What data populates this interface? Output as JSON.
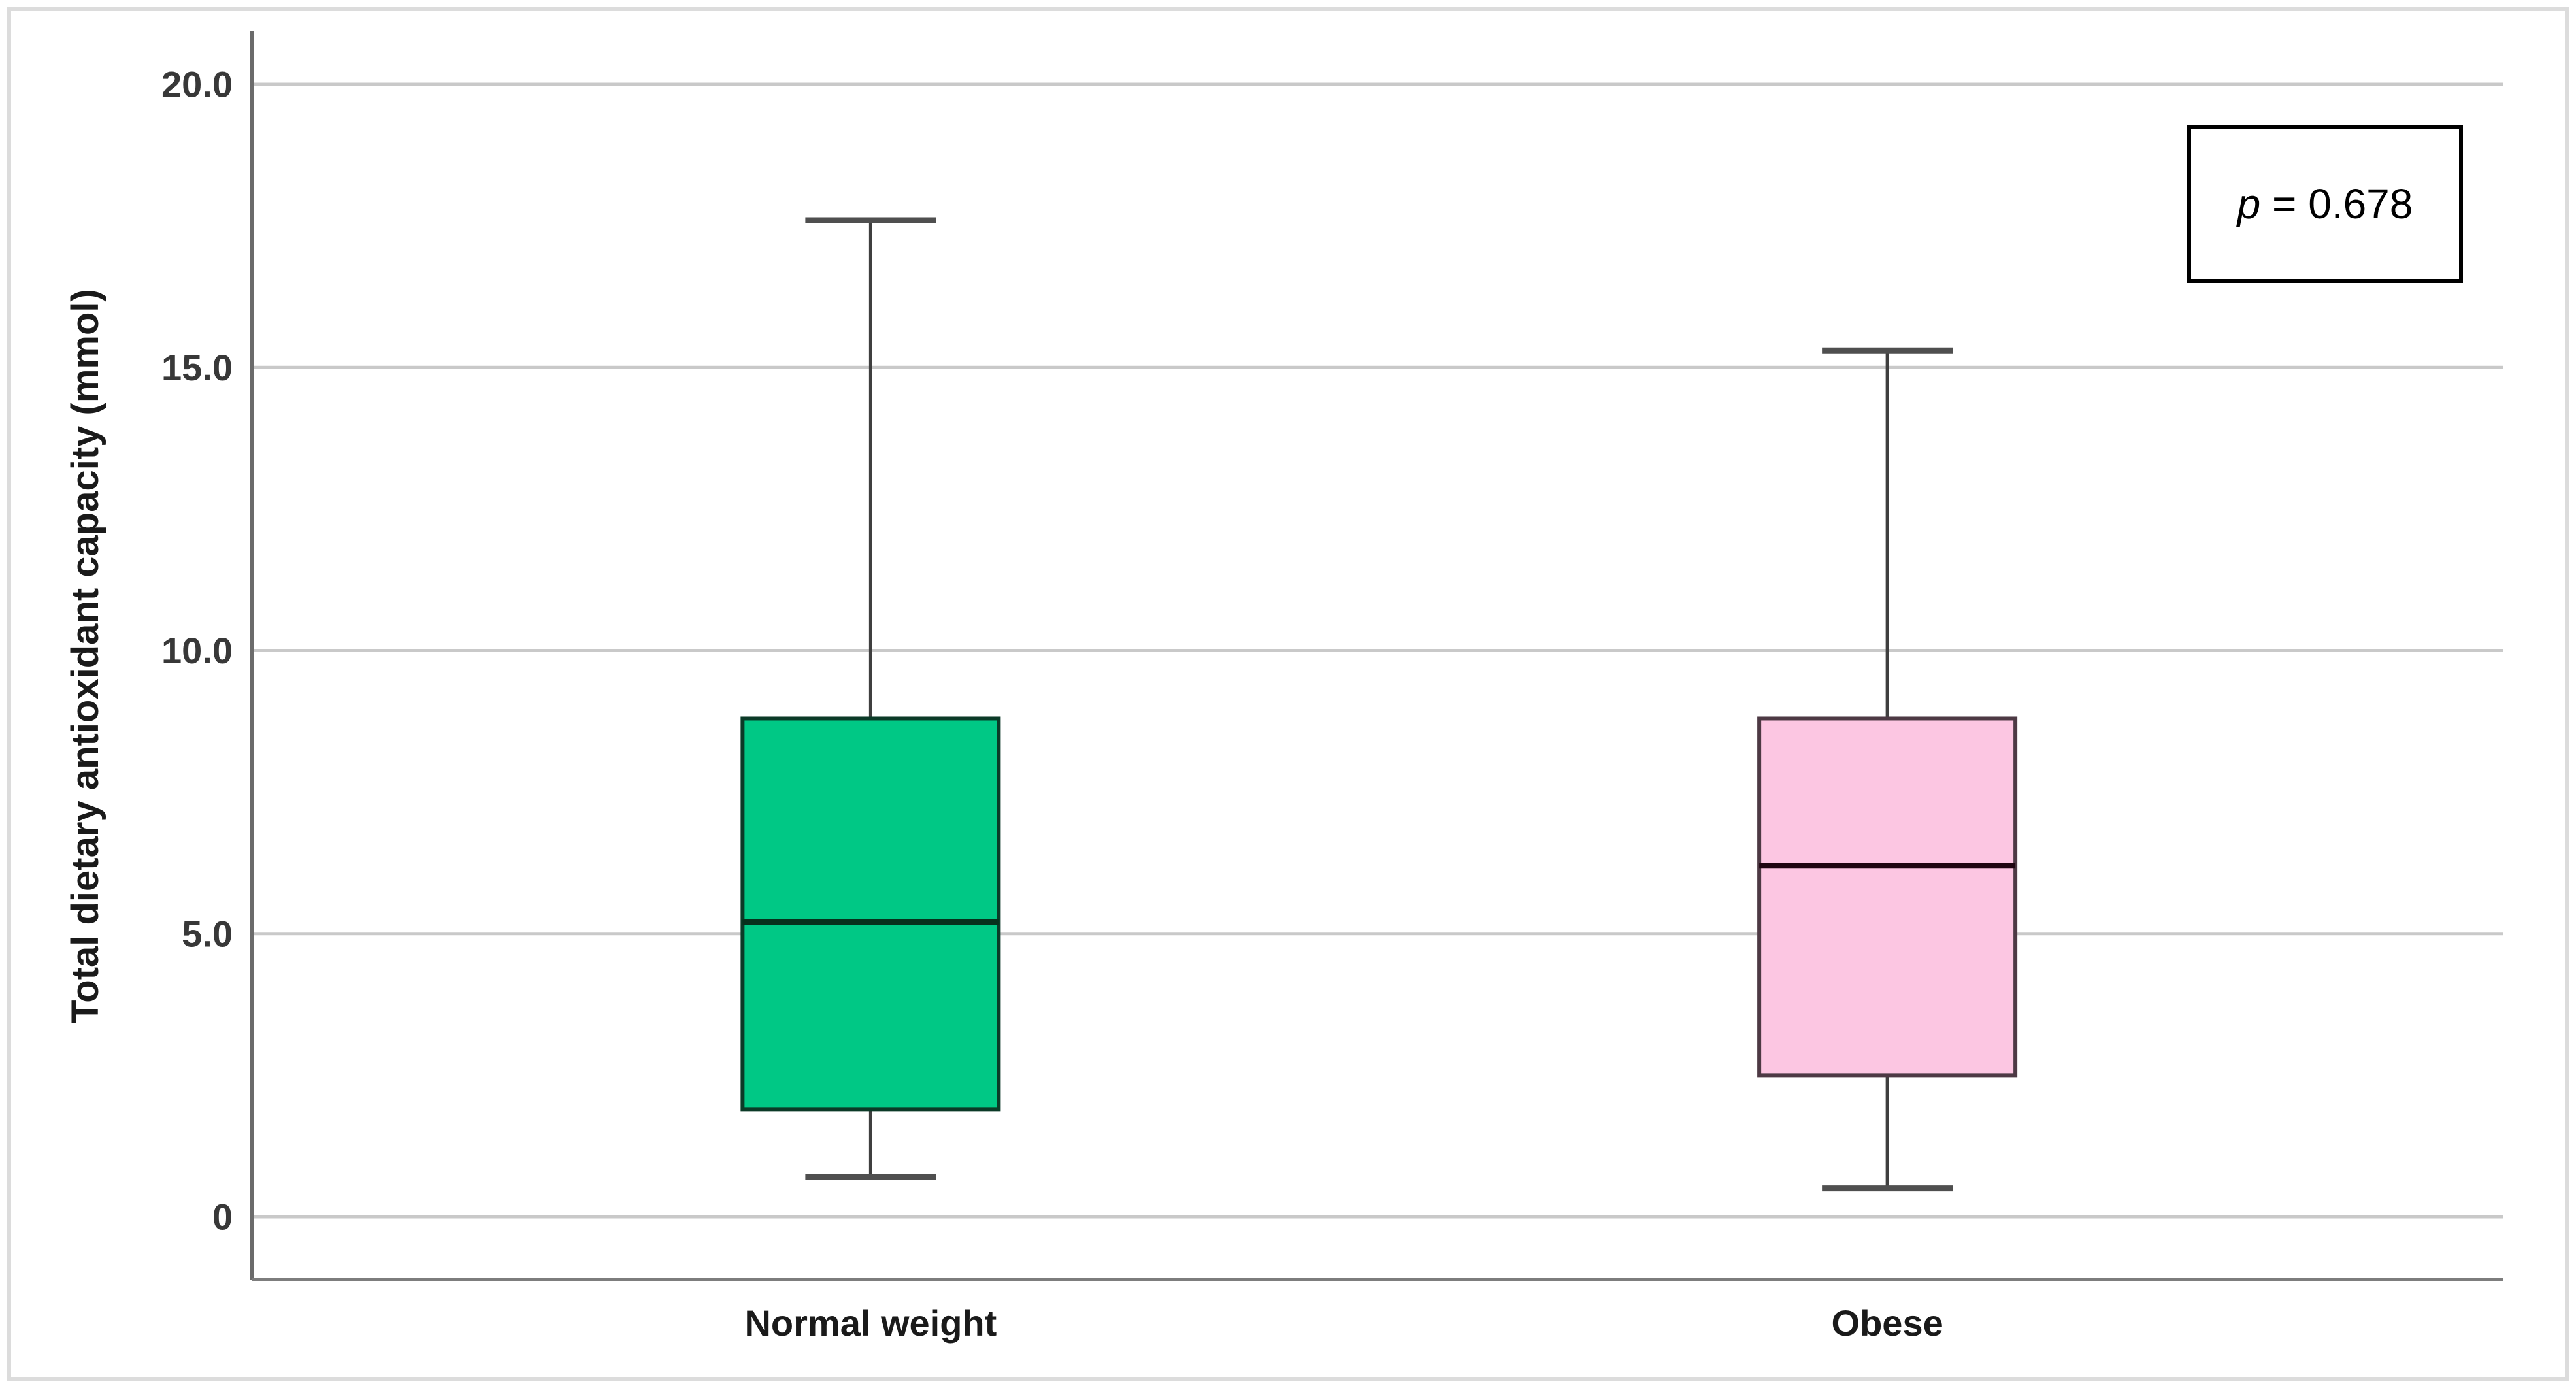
{
  "figure": {
    "background": "#ffffff",
    "frame_color": "#dcdcdc"
  },
  "chart_data": {
    "type": "boxplot",
    "title": "",
    "xlabel": "",
    "ylabel": "Total dietary antioxidant capacity (mmol)",
    "ylim": [
      0,
      21
    ],
    "grid": true,
    "legend": "none",
    "yticks": [
      {
        "value": 0,
        "label": "0"
      },
      {
        "value": 5,
        "label": "5.0"
      },
      {
        "value": 10,
        "label": "10.0"
      },
      {
        "value": 15,
        "label": "15.0"
      },
      {
        "value": 20,
        "label": "20.0"
      }
    ],
    "categories": [
      "Normal weight",
      "Obese"
    ],
    "series": [
      {
        "name": "Normal weight",
        "whisker_low": 0.7,
        "q1": 1.9,
        "median": 5.2,
        "q3": 8.8,
        "whisker_high": 17.6,
        "fill_color": "#00c885",
        "border_color": "#0b3a27",
        "median_color": "#07311d"
      },
      {
        "name": "Obese",
        "whisker_low": 0.5,
        "q1": 2.5,
        "median": 6.2,
        "q3": 8.8,
        "whisker_high": 15.3,
        "fill_color": "#fcc6e2",
        "border_color": "#4d3944",
        "median_color": "#1f0511"
      }
    ],
    "annotation": {
      "text": "p = 0.678",
      "italic_part": "p",
      "rest_part": " = 0.678"
    }
  },
  "style_colors": {
    "gridline": "#c9c9c9",
    "y_axis_line": "#6b6b6b",
    "x_axis_line": "#7d7d7d",
    "whisker": "#3f3f3f",
    "whisker_cap": "#4f4f4f",
    "tick_label": "#383838",
    "category_label": "#1a1a1a",
    "axis_title": "#1a1a1a",
    "annotation_border": "#000000",
    "annotation_text": "#000000",
    "annotation_fill": "#ffffff"
  }
}
